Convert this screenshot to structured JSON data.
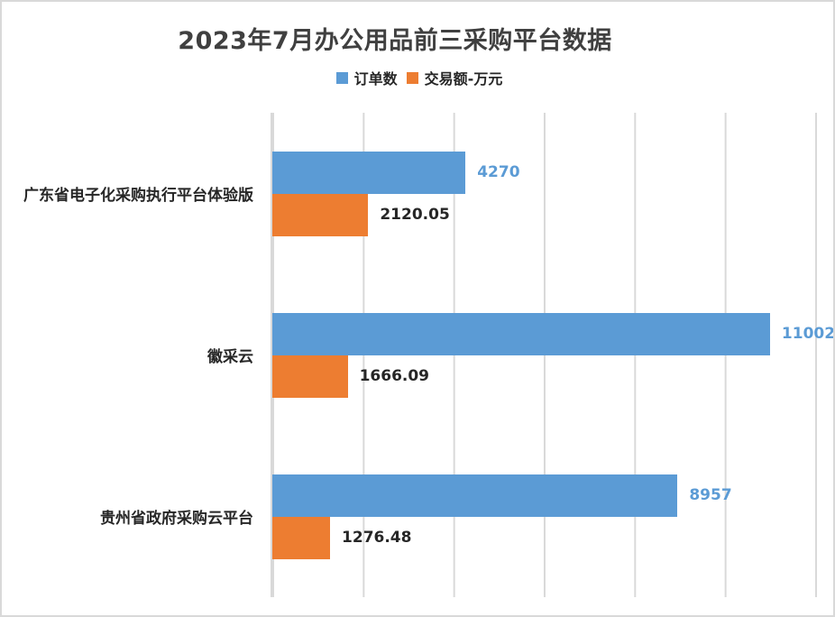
{
  "title": "2023年7月办公用品前三采购平台数据",
  "legend": {
    "items": [
      {
        "label": "订单数",
        "color": "#5B9BD5"
      },
      {
        "label": "交易额-万元",
        "color": "#ED7D31"
      }
    ]
  },
  "colors": {
    "series_blue": "#5B9BD5",
    "series_orange": "#ED7D31",
    "gridline": "#D9D9D9",
    "title_text": "#404040",
    "label_text": "#262626",
    "background": "#FFFFFF"
  },
  "chart_data": {
    "type": "bar",
    "orientation": "horizontal",
    "title": "2023年7月办公用品前三采购平台数据",
    "categories": [
      "广东省电子化采购执行平台体验版",
      "徽采云",
      "贵州省政府采购云平台"
    ],
    "series": [
      {
        "name": "订单数",
        "color": "#5B9BD5",
        "label_color": "#5B9BD5",
        "values": [
          4270,
          11002,
          8957
        ],
        "labels": [
          "4270",
          "11002",
          "8957"
        ]
      },
      {
        "name": "交易额-万元",
        "color": "#ED7D31",
        "label_color": "#262626",
        "values": [
          2120.05,
          1666.09,
          1276.48
        ],
        "labels": [
          "2120.05",
          "1666.09",
          "1276.48"
        ]
      }
    ],
    "xlabel": "",
    "ylabel": "",
    "xlim": [
      0,
      12000
    ],
    "gridline_interval": 2000,
    "grid": true,
    "legend_position": "top",
    "value_labels": true
  }
}
